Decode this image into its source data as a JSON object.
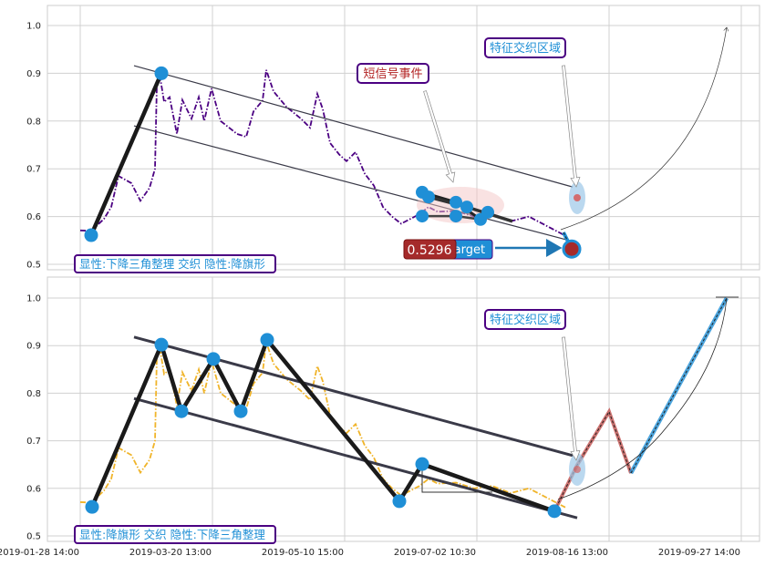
{
  "chart_data": [
    {
      "type": "line",
      "panel": "top",
      "ylim": [
        0.49,
        1.04
      ],
      "yticks": [
        "0.5",
        "0.6",
        "0.7",
        "0.8",
        "0.9",
        "1.0"
      ],
      "xticks": [
        {
          "label": "2019-01-28 14:00",
          "index": 0
        },
        {
          "label": "2019-03-20 13:00",
          "index": 72.5
        },
        {
          "label": "2019-05-10 15:00",
          "index": 145
        },
        {
          "label": "2019-07-02 10:30",
          "index": 217.5
        },
        {
          "label": "2019-08-16 13:00",
          "index": 290
        },
        {
          "label": "2019-09-27 14:00",
          "index": 362.5
        }
      ],
      "grid": true,
      "series_color": "#4b0082",
      "series": [
        [
          0,
          0.571
        ],
        [
          6,
          0.57
        ],
        [
          13,
          0.595
        ],
        [
          17,
          0.62
        ],
        [
          21,
          0.685
        ],
        [
          28,
          0.67
        ],
        [
          33,
          0.633
        ],
        [
          38,
          0.66
        ],
        [
          41,
          0.7
        ],
        [
          42,
          0.876
        ],
        [
          44,
          0.887
        ],
        [
          46,
          0.84
        ],
        [
          49,
          0.85
        ],
        [
          53,
          0.773
        ],
        [
          56,
          0.844
        ],
        [
          61,
          0.805
        ],
        [
          65,
          0.85
        ],
        [
          68,
          0.8
        ],
        [
          72,
          0.868
        ],
        [
          77,
          0.8
        ],
        [
          86,
          0.773
        ],
        [
          91,
          0.767
        ],
        [
          95,
          0.82
        ],
        [
          100,
          0.843
        ],
        [
          102,
          0.907
        ],
        [
          106,
          0.862
        ],
        [
          113,
          0.83
        ],
        [
          121,
          0.805
        ],
        [
          126,
          0.786
        ],
        [
          130,
          0.857
        ],
        [
          133,
          0.825
        ],
        [
          137,
          0.754
        ],
        [
          142,
          0.73
        ],
        [
          146,
          0.716
        ],
        [
          151,
          0.735
        ],
        [
          156,
          0.69
        ],
        [
          161,
          0.665
        ],
        [
          166,
          0.62
        ],
        [
          171,
          0.6
        ],
        [
          176,
          0.585
        ],
        [
          186,
          0.605
        ],
        [
          191,
          0.62
        ],
        [
          196,
          0.61
        ],
        [
          206,
          0.612
        ],
        [
          216,
          0.6
        ],
        [
          226,
          0.605
        ],
        [
          236,
          0.59
        ],
        [
          246,
          0.6
        ],
        [
          256,
          0.58
        ],
        [
          266,
          0.56
        ]
      ],
      "pattern_points": [
        [
          6,
          0.561
        ],
        [
          44.5,
          0.9
        ]
      ],
      "channel_upper": [
        [
          29.5,
          0.916
        ],
        [
          270,
          0.662
        ]
      ],
      "channel_lower": [
        [
          29.5,
          0.79
        ],
        [
          270,
          0.548
        ]
      ],
      "cluster_points": [
        [
          187.5,
          0.651
        ],
        [
          191,
          0.641
        ],
        [
          187.5,
          0.601
        ],
        [
          206,
          0.63
        ],
        [
          206,
          0.601
        ],
        [
          212,
          0.62
        ],
        [
          219.5,
          0.594
        ],
        [
          223.5,
          0.609
        ]
      ],
      "target_point": [
        269.5,
        0.532
      ],
      "target_value": "0.5296",
      "target_label": "Target",
      "callout_signal": "短信号事件",
      "callout_zone": "特征交织区域",
      "legend": "显性:下降三角整理 交织 隐性:降旗形",
      "colors": {
        "point": "#1f8fd6",
        "frame": "#4b0082",
        "signal_text": "#b22222",
        "zone_text": "#1f8fd6",
        "target_red": "#a52a2a"
      }
    },
    {
      "type": "line",
      "panel": "bottom",
      "ylim": [
        0.49,
        1.04
      ],
      "yticks": [
        "0.5",
        "0.6",
        "0.7",
        "0.8",
        "0.9",
        "1.0"
      ],
      "grid": true,
      "series_color": "#f0b429",
      "series": [
        [
          0,
          0.571
        ],
        [
          6,
          0.57
        ],
        [
          13,
          0.595
        ],
        [
          17,
          0.62
        ],
        [
          21,
          0.685
        ],
        [
          28,
          0.67
        ],
        [
          33,
          0.633
        ],
        [
          38,
          0.66
        ],
        [
          41,
          0.7
        ],
        [
          42,
          0.876
        ],
        [
          44,
          0.887
        ],
        [
          46,
          0.84
        ],
        [
          49,
          0.85
        ],
        [
          53,
          0.773
        ],
        [
          56,
          0.844
        ],
        [
          61,
          0.805
        ],
        [
          65,
          0.85
        ],
        [
          68,
          0.8
        ],
        [
          72,
          0.868
        ],
        [
          77,
          0.8
        ],
        [
          86,
          0.773
        ],
        [
          91,
          0.767
        ],
        [
          95,
          0.82
        ],
        [
          100,
          0.843
        ],
        [
          102,
          0.907
        ],
        [
          106,
          0.862
        ],
        [
          113,
          0.83
        ],
        [
          121,
          0.805
        ],
        [
          126,
          0.786
        ],
        [
          130,
          0.857
        ],
        [
          133,
          0.825
        ],
        [
          137,
          0.754
        ],
        [
          142,
          0.73
        ],
        [
          146,
          0.716
        ],
        [
          151,
          0.735
        ],
        [
          156,
          0.69
        ],
        [
          161,
          0.665
        ],
        [
          166,
          0.62
        ],
        [
          171,
          0.6
        ],
        [
          176,
          0.585
        ],
        [
          186,
          0.605
        ],
        [
          191,
          0.62
        ],
        [
          196,
          0.61
        ],
        [
          206,
          0.612
        ],
        [
          216,
          0.6
        ],
        [
          226,
          0.605
        ],
        [
          236,
          0.59
        ],
        [
          246,
          0.6
        ],
        [
          256,
          0.58
        ],
        [
          266,
          0.56
        ]
      ],
      "pattern_points": [
        [
          6.5,
          0.561
        ],
        [
          44.5,
          0.902
        ],
        [
          55.5,
          0.762
        ],
        [
          73,
          0.872
        ],
        [
          88,
          0.762
        ],
        [
          102.5,
          0.912
        ],
        [
          175,
          0.573
        ],
        [
          187.5,
          0.651
        ],
        [
          260,
          0.552
        ]
      ],
      "channel_upper": [
        [
          29.5,
          0.918
        ],
        [
          270,
          0.669
        ]
      ],
      "channel_lower": [
        [
          29.5,
          0.789
        ],
        [
          272.5,
          0.538
        ]
      ],
      "projection_red": [
        [
          260,
          0.552
        ],
        [
          272.5,
          0.649
        ],
        [
          290,
          0.761
        ],
        [
          302,
          0.632
        ]
      ],
      "projection_blue": [
        [
          302,
          0.632
        ],
        [
          354.5,
          1.0
        ]
      ],
      "callout_zone": "特征交织区域",
      "legend": "显性:降旗形 交织 隐性:下降三角整理"
    }
  ]
}
